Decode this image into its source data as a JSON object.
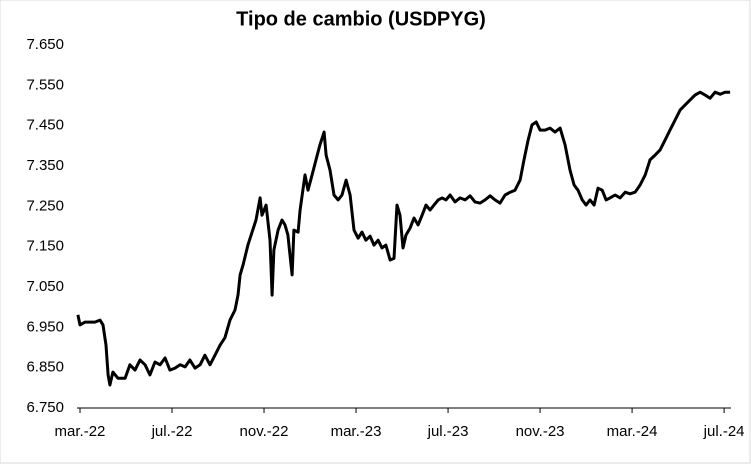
{
  "chart_data": {
    "type": "line",
    "title": "Tipo de cambio (USDPYG)",
    "series": [
      {
        "color": "#000000",
        "x": [
          -0.09,
          0,
          0.22,
          0.65,
          0.87,
          1.0,
          1.13,
          1.22,
          1.3,
          1.43,
          1.65,
          1.96,
          2.17,
          2.39,
          2.61,
          2.83,
          3.04,
          3.26,
          3.48,
          3.7,
          3.91,
          4.13,
          4.35,
          4.57,
          4.78,
          5.0,
          5.22,
          5.43,
          5.65,
          5.87,
          6.09,
          6.3,
          6.52,
          6.74,
          6.87,
          6.96,
          7.09,
          7.3,
          7.48,
          7.65,
          7.83,
          7.91,
          8.09,
          8.26,
          8.35,
          8.43,
          8.61,
          8.78,
          8.91,
          9.04,
          9.13,
          9.22,
          9.3,
          9.48,
          9.57,
          9.78,
          9.91,
          10.09,
          10.26,
          10.43,
          10.61,
          10.7,
          10.87,
          11.04,
          11.22,
          11.39,
          11.57,
          11.74,
          11.91,
          12.09,
          12.26,
          12.43,
          12.61,
          12.78,
          12.96,
          13.13,
          13.3,
          13.48,
          13.65,
          13.78,
          13.91,
          14.04,
          14.17,
          14.35,
          14.52,
          14.7,
          14.87,
          15.04,
          15.22,
          15.39,
          15.57,
          15.74,
          15.91,
          16.09,
          16.3,
          16.52,
          16.74,
          16.96,
          17.17,
          17.39,
          17.61,
          17.83,
          18.04,
          18.26,
          18.48,
          18.7,
          18.91,
          19.13,
          19.3,
          19.48,
          19.65,
          19.83,
          20.0,
          20.22,
          20.43,
          20.65,
          20.87,
          21.09,
          21.3,
          21.48,
          21.65,
          21.83,
          22.0,
          22.17,
          22.35,
          22.52,
          22.7,
          22.87,
          23.04,
          23.26,
          23.48,
          23.7,
          23.91,
          24.13,
          24.35,
          24.57,
          24.78,
          25.0,
          25.22,
          25.43,
          25.65,
          25.87,
          26.09,
          26.3,
          26.52,
          26.74,
          26.96,
          27.17,
          27.39,
          27.61,
          27.83,
          28.04,
          28.26
        ],
        "values": [
          6981,
          6956,
          6963,
          6963,
          6968,
          6956,
          6906,
          6832,
          6807,
          6839,
          6824,
          6824,
          6857,
          6844,
          6869,
          6857,
          6832,
          6864,
          6857,
          6874,
          6844,
          6849,
          6857,
          6852,
          6869,
          6849,
          6857,
          6881,
          6857,
          6881,
          6906,
          6924,
          6968,
          6993,
          7030,
          7080,
          7105,
          7154,
          7186,
          7216,
          7271,
          7228,
          7253,
          7166,
          7030,
          7142,
          7191,
          7216,
          7204,
          7179,
          7129,
          7080,
          7191,
          7186,
          7241,
          7328,
          7290,
          7328,
          7365,
          7402,
          7434,
          7377,
          7340,
          7278,
          7266,
          7278,
          7315,
          7278,
          7191,
          7171,
          7186,
          7166,
          7176,
          7154,
          7166,
          7147,
          7154,
          7117,
          7121,
          7253,
          7228,
          7147,
          7179,
          7196,
          7221,
          7204,
          7228,
          7253,
          7241,
          7253,
          7266,
          7271,
          7266,
          7278,
          7261,
          7271,
          7266,
          7276,
          7261,
          7258,
          7266,
          7276,
          7266,
          7258,
          7278,
          7285,
          7290,
          7315,
          7365,
          7414,
          7452,
          7459,
          7439,
          7439,
          7444,
          7434,
          7444,
          7402,
          7340,
          7303,
          7290,
          7266,
          7253,
          7266,
          7253,
          7295,
          7290,
          7266,
          7271,
          7278,
          7271,
          7285,
          7281,
          7285,
          7303,
          7328,
          7365,
          7377,
          7390,
          7414,
          7439,
          7464,
          7489,
          7501,
          7514,
          7526,
          7533,
          7526,
          7518,
          7533,
          7528,
          7533,
          7533
        ]
      }
    ],
    "xlim": [
      -0.13,
      28.3
    ],
    "xticks": [
      {
        "value": 0,
        "label": "mar.-22"
      },
      {
        "value": 4,
        "label": "jul.-22"
      },
      {
        "value": 8,
        "label": "nov.-22"
      },
      {
        "value": 12,
        "label": "mar.-23"
      },
      {
        "value": 16,
        "label": "jul.-23"
      },
      {
        "value": 20,
        "label": "nov.-23"
      },
      {
        "value": 24,
        "label": "mar.-24"
      },
      {
        "value": 28,
        "label": "jul.-24"
      }
    ],
    "ylim": [
      6750,
      7650
    ],
    "yticks": [
      {
        "value": 6750,
        "label": "6.750"
      },
      {
        "value": 6850,
        "label": "6.850"
      },
      {
        "value": 6950,
        "label": "6.950"
      },
      {
        "value": 7050,
        "label": "7.050"
      },
      {
        "value": 7150,
        "label": "7.150"
      },
      {
        "value": 7250,
        "label": "7.250"
      },
      {
        "value": 7350,
        "label": "7.350"
      },
      {
        "value": 7450,
        "label": "7.450"
      },
      {
        "value": 7550,
        "label": "7.550"
      },
      {
        "value": 7650,
        "label": "7.650"
      }
    ],
    "grid": false
  }
}
